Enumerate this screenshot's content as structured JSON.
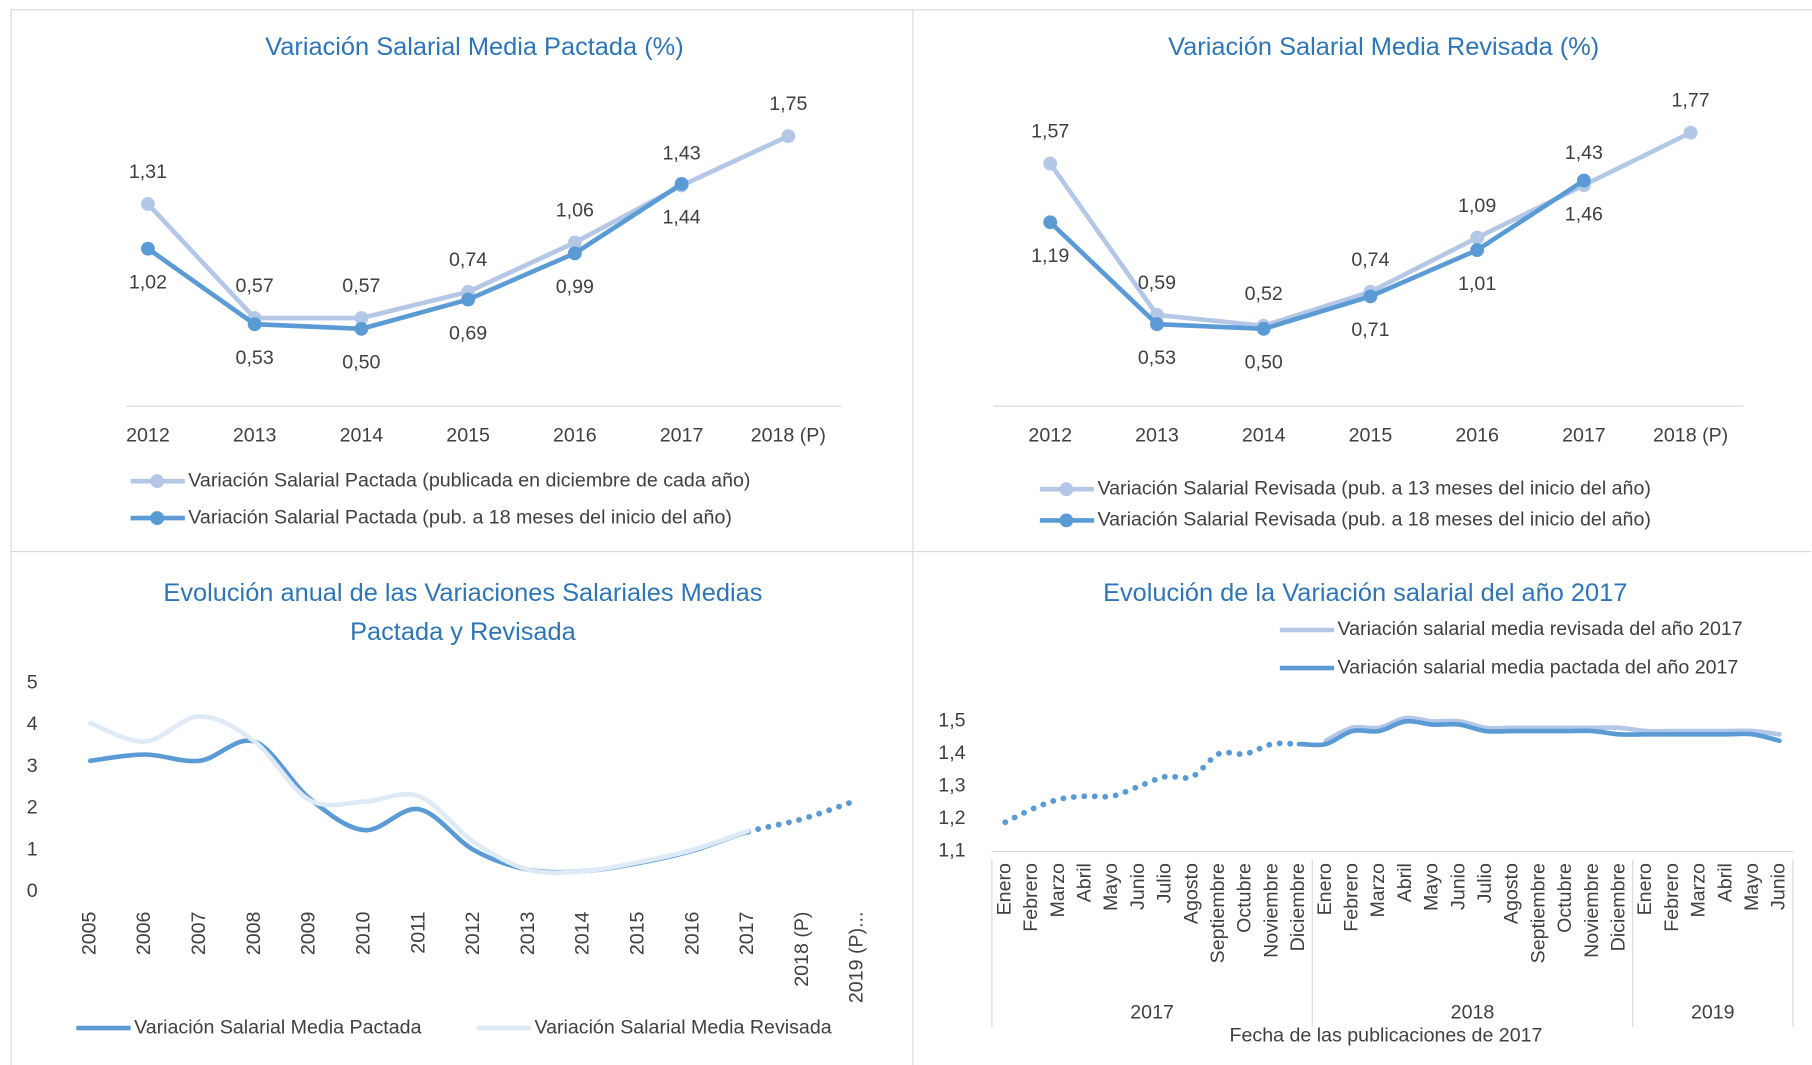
{
  "chart_data": [
    {
      "type": "line",
      "title": [
        "Variación Salarial Media Pactada (%)"
      ],
      "markers": true,
      "categories": [
        "2012",
        "2013",
        "2014",
        "2015",
        "2016",
        "2017",
        "2018 (P)"
      ],
      "series": [
        {
          "name": "Variación Salarial Pactada (publicada en diciembre de cada año)",
          "color": "#b4c7e7",
          "values": [
            1.31,
            0.57,
            0.57,
            0.74,
            1.06,
            1.43,
            1.75
          ],
          "value_labels": [
            "1,31",
            "0,57",
            "0,57",
            "0,74",
            "1,06",
            "1,43",
            "1,75"
          ]
        },
        {
          "name": "Variación Salarial Pactada (pub. a 18 meses del inicio del año)",
          "color": "#5b9bd5",
          "values": [
            1.02,
            0.53,
            0.5,
            0.69,
            0.99,
            1.44,
            null
          ],
          "value_labels": [
            "1,02",
            "0,53",
            "0,50",
            "0,69",
            "0,99",
            "1,44",
            null
          ]
        }
      ]
    },
    {
      "type": "line",
      "title": [
        "Variación Salarial Media Revisada (%)"
      ],
      "markers": true,
      "categories": [
        "2012",
        "2013",
        "2014",
        "2015",
        "2016",
        "2017",
        "2018 (P)"
      ],
      "series": [
        {
          "name": "Variación Salarial Revisada (pub. a 13 meses del inicio del año)",
          "color": "#b4c7e7",
          "values": [
            1.57,
            0.59,
            0.52,
            0.74,
            1.09,
            1.43,
            1.77
          ],
          "value_labels": [
            "1,57",
            "0,59",
            "0,52",
            "0,74",
            "1,09",
            "1,43",
            "1,77"
          ]
        },
        {
          "name": "Variación Salarial Revisada (pub. a 18 meses del inicio del año)",
          "color": "#5b9bd5",
          "values": [
            1.19,
            0.53,
            0.5,
            0.71,
            1.01,
            1.46,
            null
          ],
          "value_labels": [
            "1,19",
            "0,53",
            "0,50",
            "0,71",
            "1,01",
            "1,46",
            null
          ]
        }
      ]
    },
    {
      "type": "line",
      "title": [
        "Evolución anual de las Variaciones Salariales Medias",
        "Pactada y Revisada"
      ],
      "smooth": true,
      "categories": [
        "2005",
        "2006",
        "2007",
        "2008",
        "2009",
        "2010",
        "2011",
        "2012",
        "2013",
        "2014",
        "2015",
        "2016",
        "2017",
        "2018 (P)",
        "2019 (P)..."
      ],
      "ylim": [
        0,
        5
      ],
      "yticks": [
        0,
        1,
        2,
        3,
        4,
        5
      ],
      "series": [
        {
          "name": "Variación Salarial Media Pactada",
          "color": "#5b9bd5",
          "values": [
            3.14,
            3.29,
            3.14,
            3.6,
            2.24,
            1.48,
            1.98,
            1.0,
            0.53,
            0.5,
            0.69,
            0.99,
            1.44,
            1.75,
            2.2
          ]
        },
        {
          "name": "Variación Salarial Media Revisada",
          "color": "#deebf7",
          "values": [
            4.04,
            3.6,
            4.2,
            3.6,
            2.2,
            2.16,
            2.29,
            1.19,
            0.53,
            0.5,
            0.71,
            1.01,
            1.46,
            null,
            null
          ]
        }
      ]
    },
    {
      "type": "line",
      "title": [
        "Evolución de la Variación salarial del año 2017"
      ],
      "smooth": true,
      "xlabel": "Fecha de las publicaciones de 2017",
      "categories": [
        "Enero",
        "Febrero",
        "Marzo",
        "Abril",
        "Mayo",
        "Junio",
        "Julio",
        "Agosto",
        "Septiembre",
        "Octubre",
        "Noviembre",
        "Diciembre",
        "Enero",
        "Febrero",
        "Marzo",
        "Abril",
        "Mayo",
        "Junio",
        "Julio",
        "Agosto",
        "Septiembre",
        "Octubre",
        "Noviembre",
        "Diciembre",
        "Enero",
        "Febrero",
        "Marzo",
        "Abril",
        "Mayo",
        "Junio"
      ],
      "category_groups": [
        {
          "name": "2017",
          "span": 12
        },
        {
          "name": "2018",
          "span": 12
        },
        {
          "name": "2019",
          "span": 6
        }
      ],
      "ylim": [
        1.1,
        1.55
      ],
      "yticks": [
        {
          "value": 1.1,
          "label": "1,1"
        },
        {
          "value": 1.2,
          "label": "1,2"
        },
        {
          "value": 1.3,
          "label": "1,3"
        },
        {
          "value": 1.4,
          "label": "1,4"
        },
        {
          "value": 1.5,
          "label": "1,5"
        }
      ],
      "series": [
        {
          "name": "Variación salarial media revisada del año 2017",
          "color": "#b4c7e7",
          "values": [
            null,
            null,
            null,
            null,
            null,
            null,
            null,
            null,
            null,
            null,
            null,
            null,
            1.44,
            1.48,
            1.48,
            1.51,
            1.5,
            1.5,
            1.48,
            1.48,
            1.48,
            1.48,
            1.48,
            1.48,
            1.47,
            1.47,
            1.47,
            1.47,
            1.47,
            1.46
          ]
        },
        {
          "name": "Variación salarial media pactada del año 2017",
          "color": "#5b9bd5",
          "values": [
            1.19,
            1.23,
            1.26,
            1.27,
            1.27,
            1.3,
            1.33,
            1.33,
            1.4,
            1.4,
            1.43,
            1.43,
            1.43,
            1.47,
            1.47,
            1.5,
            1.49,
            1.49,
            1.47,
            1.47,
            1.47,
            1.47,
            1.47,
            1.46,
            1.46,
            1.46,
            1.46,
            1.46,
            1.46,
            1.44
          ]
        }
      ]
    }
  ]
}
